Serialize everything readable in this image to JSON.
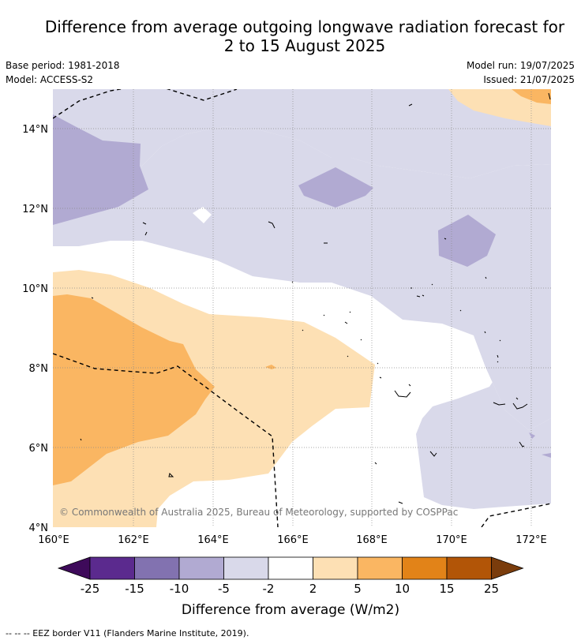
{
  "title": {
    "line1": "Difference from average outgoing longwave radiation forecast for",
    "line2": "2 to 15 August 2025"
  },
  "meta": {
    "base_period": "Base period: 1981-2018",
    "model": "Model: ACCESS-S2",
    "model_run": "Model run: 19/07/2025",
    "issued": "Issued: 21/07/2025"
  },
  "map": {
    "lon_range": [
      160,
      172.5
    ],
    "lat_range": [
      4,
      15
    ],
    "lon_ticks": [
      "160°E",
      "162°E",
      "164°E",
      "166°E",
      "168°E",
      "170°E",
      "172°E"
    ],
    "lat_ticks": [
      "4°N",
      "6°N",
      "8°N",
      "10°N",
      "12°N",
      "14°N"
    ],
    "gridlines": true,
    "copyright": "© Commonwealth of Australia 2025, Bureau of Meteorology, supported by COSPPac"
  },
  "legend": {
    "bins": [
      -25,
      -15,
      -10,
      -5,
      -2,
      2,
      5,
      10,
      15,
      25
    ],
    "colors": [
      "#3e0a5a",
      "#5b2a8e",
      "#8272b0",
      "#b1aad2",
      "#d9d9ea",
      "#ffffff",
      "#fde0b4",
      "#fab662",
      "#e28318",
      "#b25507",
      "#7a3c0c"
    ],
    "labels": [
      "-25",
      "-15",
      "-10",
      "-5",
      "-2",
      "2",
      "5",
      "10",
      "15",
      "25"
    ],
    "axis_label": "Difference from average (W/m2)"
  },
  "footnote": "--  --  -- EEZ border V11 (Flanders Marine Institute, 2019)."
}
